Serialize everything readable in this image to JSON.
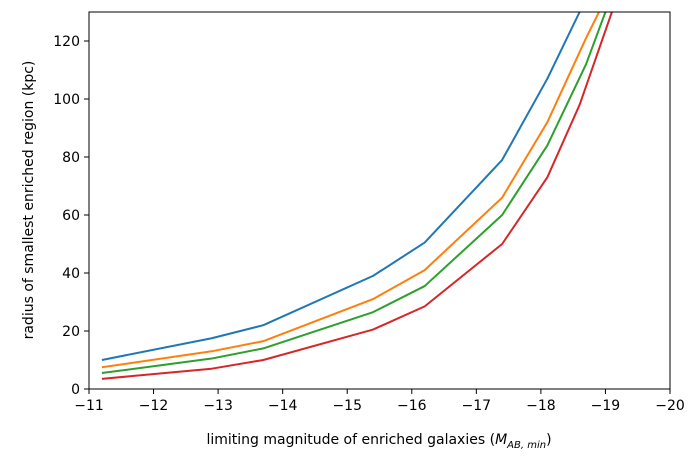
{
  "chart_data": {
    "type": "line",
    "xlabel": "limiting magnitude of enriched galaxies (",
    "xlabel_math": {
      "base": "M",
      "sub": "AB, min"
    },
    "xlabel_suffix": ")",
    "ylabel": "radius of smallest enriched region (kpc)",
    "xlim": [
      -11,
      -20
    ],
    "ylim": [
      0,
      130
    ],
    "x_reversed": true,
    "grid": false,
    "x_ticks": [
      -11,
      -12,
      -13,
      -14,
      -15,
      -16,
      -17,
      -18,
      -19,
      -20
    ],
    "x_tick_labels": [
      "−11",
      "−12",
      "−13",
      "−14",
      "−15",
      "−16",
      "−17",
      "−18",
      "−19",
      "−20"
    ],
    "y_ticks": [
      0,
      20,
      40,
      60,
      80,
      100,
      120
    ],
    "y_tick_labels": [
      "0",
      "20",
      "40",
      "60",
      "80",
      "100",
      "120"
    ],
    "series": [
      {
        "color": "#1f77b4",
        "x": [
          -11.2,
          -12.9,
          -13.7,
          -15.4,
          -16.2,
          -17.4,
          -18.1,
          -18.6
        ],
        "y": [
          10,
          17.5,
          22,
          39,
          50.5,
          79,
          107,
          130
        ]
      },
      {
        "color": "#ff7f0e",
        "x": [
          -11.2,
          -12.9,
          -13.7,
          -15.4,
          -16.2,
          -17.4,
          -18.1,
          -18.7,
          -18.9
        ],
        "y": [
          7.5,
          13,
          16.5,
          31,
          41,
          66,
          92,
          121,
          130
        ]
      },
      {
        "color": "#2ca02c",
        "x": [
          -11.2,
          -12.9,
          -13.7,
          -15.4,
          -16.2,
          -17.4,
          -18.1,
          -18.7,
          -19.0
        ],
        "y": [
          5.5,
          10.5,
          14,
          26.5,
          35.5,
          60,
          84,
          112,
          130
        ]
      },
      {
        "color": "#d62728",
        "x": [
          -11.2,
          -12.9,
          -13.7,
          -15.4,
          -16.2,
          -17.4,
          -18.1,
          -18.6,
          -19.1
        ],
        "y": [
          3.5,
          7,
          10,
          20.5,
          28.5,
          50,
          73,
          98,
          130
        ]
      }
    ]
  }
}
